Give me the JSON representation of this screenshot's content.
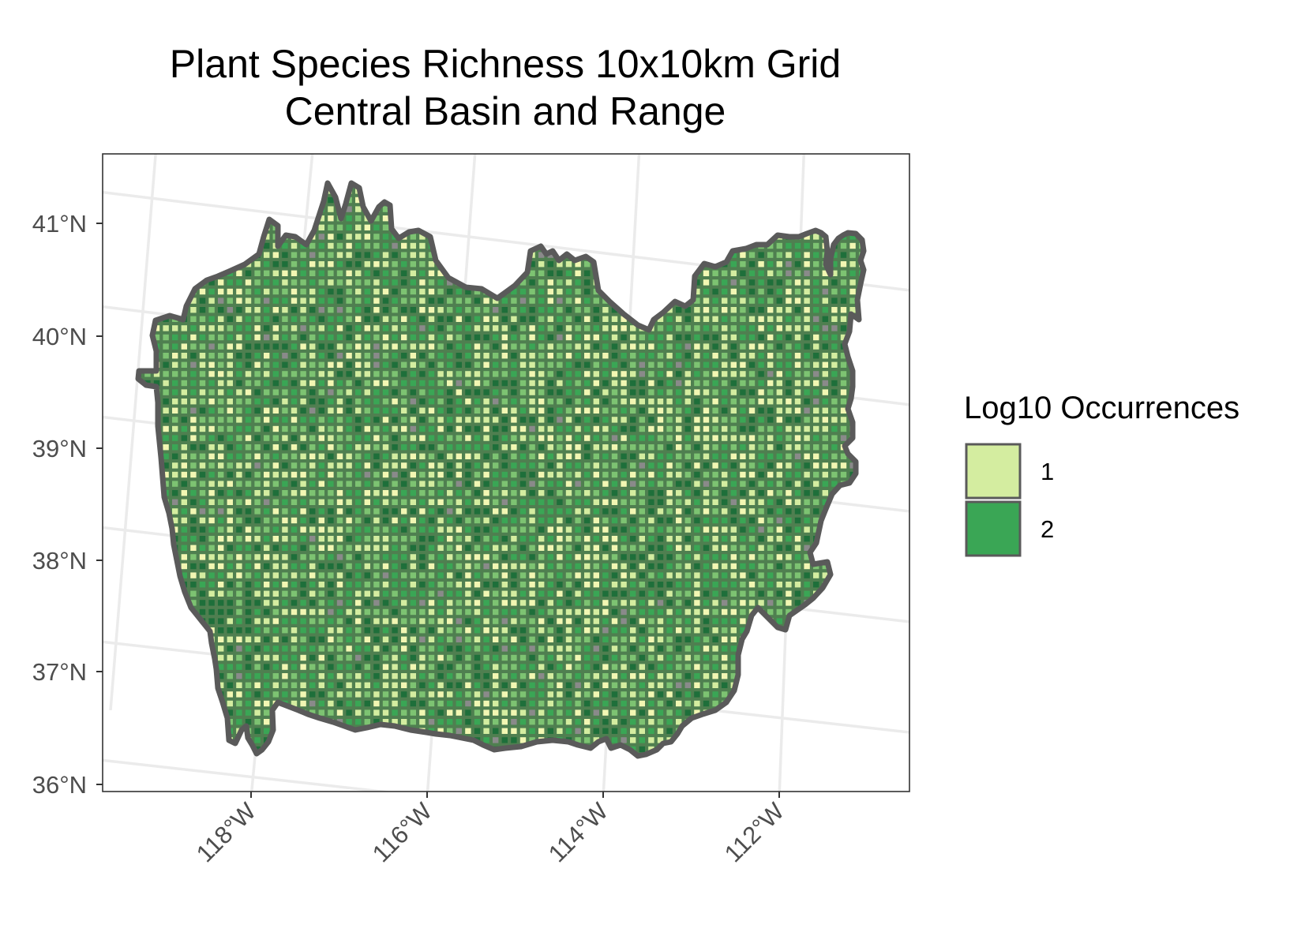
{
  "title_line1": "Plant Species Richness 10x10km Grid",
  "title_line2": "Central Basin and Range",
  "map": {
    "lat_ticks": [
      "41°N",
      "40°N",
      "39°N",
      "38°N",
      "37°N",
      "36°N"
    ],
    "lon_ticks": [
      "118°W",
      "116°W",
      "114°W",
      "112°W"
    ],
    "grid": "on",
    "fill_scale": "log10",
    "region_outline_color": "#5a5a5a",
    "panel_border_color": "#333333",
    "graticule_color": "#ebebeb"
  },
  "legend": {
    "title": "Log10 Occurrences",
    "position": "right",
    "items": [
      {
        "label": "1",
        "color": "#d4eda0"
      },
      {
        "label": "2",
        "color": "#3aa655"
      }
    ]
  },
  "palette": {
    "lightest": "#f2f7b3",
    "light": "#d4eda0",
    "medium": "#7dc372",
    "dark": "#3aa655",
    "darkest": "#1e6f3a",
    "no_data": "#8a8a8a"
  }
}
